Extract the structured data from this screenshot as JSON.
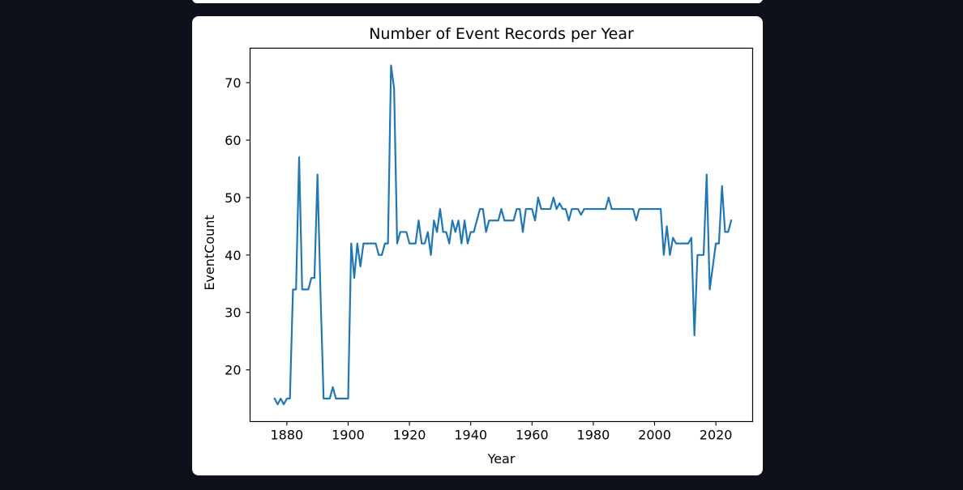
{
  "theme": {
    "page_background": "#0e111a",
    "card_background": "#ffffff",
    "series_color": "#1f77b4"
  },
  "chart_data": {
    "type": "line",
    "title": "Number of Event Records per Year",
    "xlabel": "Year",
    "ylabel": "EventCount",
    "xlim": [
      1868,
      2032
    ],
    "ylim": [
      11,
      76
    ],
    "xticks": [
      1880,
      1900,
      1920,
      1940,
      1960,
      1980,
      2000,
      2020
    ],
    "yticks": [
      20,
      30,
      40,
      50,
      60,
      70
    ],
    "grid": false,
    "series": [
      {
        "x": [
          1876,
          1877,
          1878,
          1879,
          1880,
          1881,
          1882,
          1883,
          1884,
          1885,
          1886,
          1887,
          1888,
          1889,
          1890,
          1891,
          1892,
          1893,
          1894,
          1895,
          1896,
          1897,
          1898,
          1899,
          1900,
          1901,
          1902,
          1903,
          1904,
          1905,
          1906,
          1907,
          1908,
          1909,
          1910,
          1911,
          1912,
          1913,
          1914,
          1915,
          1916,
          1917,
          1918,
          1919,
          1920,
          1921,
          1922,
          1923,
          1924,
          1925,
          1926,
          1927,
          1928,
          1929,
          1930,
          1931,
          1932,
          1933,
          1934,
          1935,
          1936,
          1937,
          1938,
          1939,
          1940,
          1941,
          1942,
          1943,
          1944,
          1945,
          1946,
          1947,
          1948,
          1949,
          1950,
          1951,
          1952,
          1953,
          1954,
          1955,
          1956,
          1957,
          1958,
          1959,
          1960,
          1961,
          1962,
          1963,
          1964,
          1965,
          1966,
          1967,
          1968,
          1969,
          1970,
          1971,
          1972,
          1973,
          1974,
          1975,
          1976,
          1977,
          1978,
          1979,
          1980,
          1981,
          1982,
          1983,
          1984,
          1985,
          1986,
          1987,
          1988,
          1989,
          1990,
          1991,
          1992,
          1993,
          1994,
          1995,
          1996,
          1997,
          1998,
          1999,
          2000,
          2001,
          2002,
          2003,
          2004,
          2005,
          2006,
          2007,
          2008,
          2009,
          2010,
          2011,
          2012,
          2013,
          2014,
          2015,
          2016,
          2017,
          2018,
          2019,
          2020,
          2021,
          2022,
          2023,
          2024,
          2025
        ],
        "y": [
          15,
          14,
          15,
          14,
          15,
          15,
          34,
          34,
          57,
          34,
          34,
          34,
          36,
          36,
          54,
          33,
          15,
          15,
          15,
          17,
          15,
          15,
          15,
          15,
          15,
          42,
          36,
          42,
          38,
          42,
          42,
          42,
          42,
          42,
          40,
          40,
          42,
          42,
          73,
          69,
          42,
          44,
          44,
          44,
          42,
          42,
          42,
          46,
          42,
          42,
          44,
          40,
          46,
          44,
          48,
          44,
          44,
          42,
          46,
          44,
          46,
          42,
          46,
          42,
          44,
          44,
          46,
          48,
          48,
          44,
          46,
          46,
          46,
          46,
          48,
          46,
          46,
          46,
          46,
          48,
          48,
          44,
          48,
          48,
          48,
          46,
          50,
          48,
          48,
          48,
          48,
          50,
          48,
          49,
          48,
          48,
          46,
          48,
          48,
          48,
          47,
          48,
          48,
          48,
          48,
          48,
          48,
          48,
          48,
          50,
          48,
          48,
          48,
          48,
          48,
          48,
          48,
          48,
          46,
          48,
          48,
          48,
          48,
          48,
          48,
          48,
          48,
          40,
          45,
          40,
          43,
          42,
          42,
          42,
          42,
          42,
          43,
          26,
          40,
          40,
          40,
          54,
          34,
          38,
          42,
          42,
          52,
          44,
          44,
          46
        ]
      }
    ]
  }
}
